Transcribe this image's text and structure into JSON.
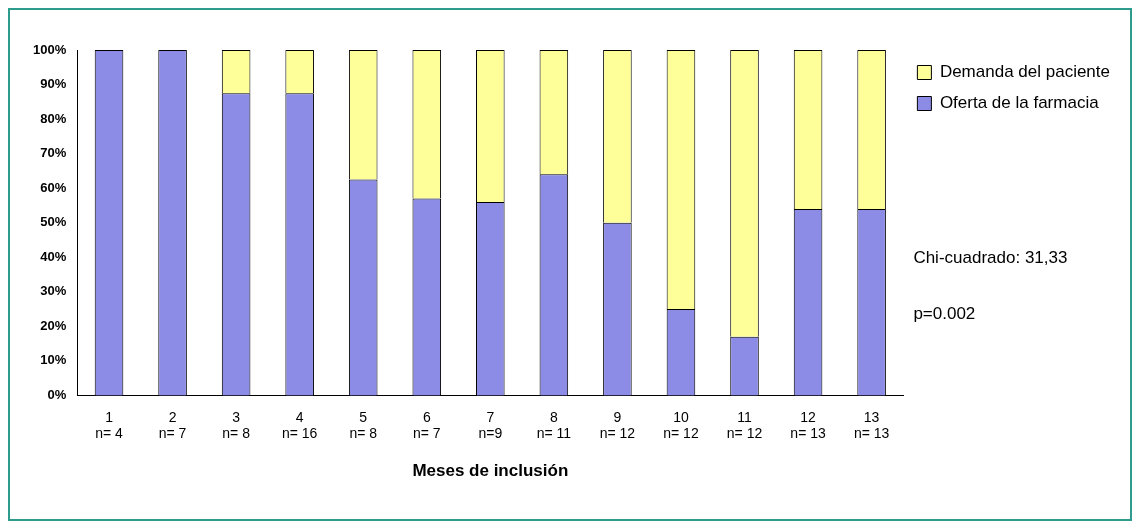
{
  "chart_data": {
    "type": "bar",
    "stacked": true,
    "xlabel": "Meses de inclusión",
    "categories": [
      "1\nn= 4",
      "2\nn= 7",
      "3\nn= 8",
      "4\nn= 16",
      "5\nn= 8",
      "6\nn= 7",
      "7\nn=9",
      "8\nn= 11",
      "9\nn= 12",
      "10\nn= 12",
      "11\nn= 12",
      "12\nn= 13",
      "13\nn= 13"
    ],
    "series": [
      {
        "name": "Oferta de la farmacia",
        "color": "#8c8ce6",
        "values": [
          100,
          100,
          87.5,
          87.5,
          62.5,
          57,
          56,
          64,
          50,
          25,
          17,
          54,
          54
        ]
      },
      {
        "name": "Demanda del paciente",
        "color": "#ffff99",
        "values": [
          0,
          0,
          12.5,
          12.5,
          37.5,
          43,
          44,
          36,
          50,
          75,
          83,
          46,
          46
        ]
      }
    ],
    "ylim": [
      0,
      100
    ],
    "yticks": [
      {
        "value": 0,
        "label": "0%"
      },
      {
        "value": 10,
        "label": "10%"
      },
      {
        "value": 20,
        "label": "20%"
      },
      {
        "value": 30,
        "label": "30%"
      },
      {
        "value": 40,
        "label": "40%"
      },
      {
        "value": 50,
        "label": "50%"
      },
      {
        "value": 60,
        "label": "60%"
      },
      {
        "value": 70,
        "label": "70%"
      },
      {
        "value": 80,
        "label": "80%"
      },
      {
        "value": 90,
        "label": "90%"
      },
      {
        "value": 100,
        "label": "100%"
      }
    ],
    "legend": "right",
    "annotations": [
      "Chi-cuadrado: 31,33",
      "p=0.002"
    ]
  }
}
